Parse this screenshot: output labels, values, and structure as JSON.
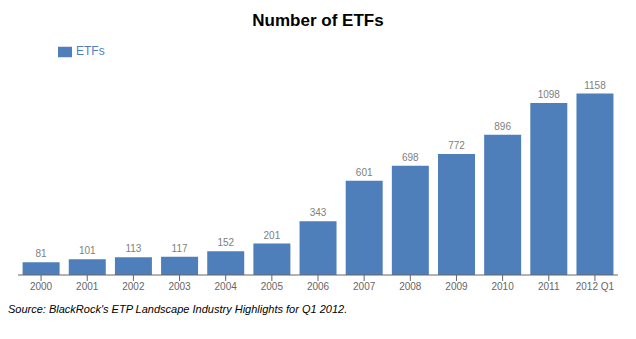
{
  "chart_data": {
    "type": "bar",
    "title": "Number of ETFs",
    "categories": [
      "2000",
      "2001",
      "2002",
      "2003",
      "2004",
      "2005",
      "2006",
      "2007",
      "2008",
      "2009",
      "2010",
      "2011",
      "2012 Q1"
    ],
    "series": [
      {
        "name": "ETFs",
        "color": "#4f7fba",
        "values": [
          81,
          101,
          113,
          117,
          152,
          201,
          343,
          601,
          698,
          772,
          896,
          1098,
          1158
        ]
      }
    ],
    "ylim": [
      0,
      1380
    ],
    "data_labels": true,
    "tick_labels": "x",
    "grid": false,
    "legend": "upper left",
    "annotations": [
      "Source: BlackRock's ETP Landscape Industry Highlights for Q1 2012."
    ]
  }
}
